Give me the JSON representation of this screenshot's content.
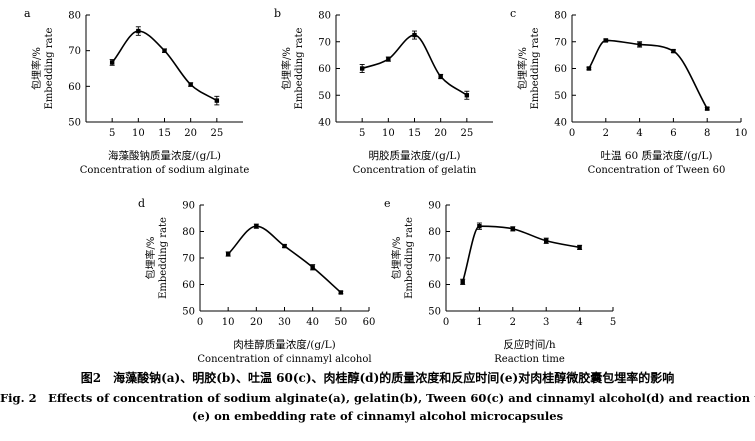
{
  "chart_data": [
    {
      "type": "line",
      "panel": "a",
      "ylabel_zh": "包埋率/%",
      "ylabel_en": "Embedding rate",
      "xlabel_zh": "海藻酸钠质量浓度/(g/L)",
      "xlabel_en": "Concentration of sodium alginate",
      "xlim": [
        0,
        30
      ],
      "ylim": [
        50,
        80
      ],
      "xticks": [
        5,
        10,
        15,
        20,
        25
      ],
      "yticks": [
        50,
        60,
        70,
        80
      ],
      "x": [
        5,
        10,
        15,
        20,
        25
      ],
      "y": [
        66.7,
        75.5,
        70,
        60.5,
        56
      ],
      "err": [
        0.8,
        1.2,
        0.5,
        0.5,
        1.2
      ]
    },
    {
      "type": "line",
      "panel": "b",
      "ylabel_zh": "包埋率/%",
      "ylabel_en": "Embedding rate",
      "xlabel_zh": "明胶质量浓度/(g/L)",
      "xlabel_en": "Concentration of gelatin",
      "xlim": [
        0,
        30
      ],
      "ylim": [
        40,
        80
      ],
      "xticks": [
        5,
        10,
        15,
        20,
        25
      ],
      "yticks": [
        40,
        50,
        60,
        70,
        80
      ],
      "x": [
        5,
        10,
        15,
        20,
        25
      ],
      "y": [
        60,
        63.5,
        72.5,
        57,
        50
      ],
      "err": [
        1.5,
        0.8,
        1.5,
        0.8,
        1.5
      ]
    },
    {
      "type": "line",
      "panel": "c",
      "ylabel_zh": "包埋率/%",
      "ylabel_en": "Embedding rate",
      "xlabel_zh": "吐温 60 质量浓度/(g/L)",
      "xlabel_en": "Concentration of Tween 60",
      "xlim": [
        0,
        10
      ],
      "ylim": [
        40,
        80
      ],
      "xticks": [
        0,
        2,
        4,
        6,
        8,
        10
      ],
      "yticks": [
        40,
        50,
        60,
        70,
        80
      ],
      "x": [
        1,
        2,
        4,
        6,
        8
      ],
      "y": [
        60,
        70.5,
        69,
        66.5,
        45
      ],
      "err": [
        0.5,
        0.5,
        1,
        0.5,
        0.5
      ]
    },
    {
      "type": "line",
      "panel": "d",
      "ylabel_zh": "包埋率/%",
      "ylabel_en": "Embedding rate",
      "xlabel_zh": "肉桂醇质量浓度/(g/L)",
      "xlabel_en": "Concentration of cinnamyl alcohol",
      "xlim": [
        0,
        60
      ],
      "ylim": [
        50,
        90
      ],
      "xticks": [
        0,
        10,
        20,
        30,
        40,
        50,
        60
      ],
      "yticks": [
        50,
        60,
        70,
        80,
        90
      ],
      "x": [
        10,
        20,
        30,
        40,
        50
      ],
      "y": [
        71.5,
        82,
        74.5,
        66.5,
        57
      ],
      "err": [
        0.8,
        0.8,
        0.5,
        1,
        0.5
      ]
    },
    {
      "type": "line",
      "panel": "e",
      "ylabel_zh": "包埋率/%",
      "ylabel_en": "Embedding rate",
      "xlabel_zh": "反应时间/h",
      "xlabel_en": "Reaction time",
      "xlim": [
        0,
        5
      ],
      "ylim": [
        50,
        90
      ],
      "xticks": [
        0,
        1,
        2,
        3,
        4,
        5
      ],
      "yticks": [
        50,
        60,
        70,
        80,
        90
      ],
      "x": [
        0.5,
        1,
        2,
        3,
        4
      ],
      "y": [
        61,
        82,
        81,
        76.5,
        74
      ],
      "err": [
        1,
        1.2,
        0.8,
        1,
        0.8
      ]
    }
  ],
  "caption": {
    "zh": "图2　海藻酸钠(a)、明胶(b)、吐温 60(c)、肉桂醇(d)的质量浓度和反应时间(e)对肉桂醇微胶囊包埋率的影响",
    "en_line1": "Fig. 2　Effects of concentration of sodium alginate(a), gelatin(b), Tween 60(c) and cinnamyl alcohol(d) and reaction time",
    "en_line2": "(e) on embedding rate of cinnamyl alcohol microcapsules"
  }
}
